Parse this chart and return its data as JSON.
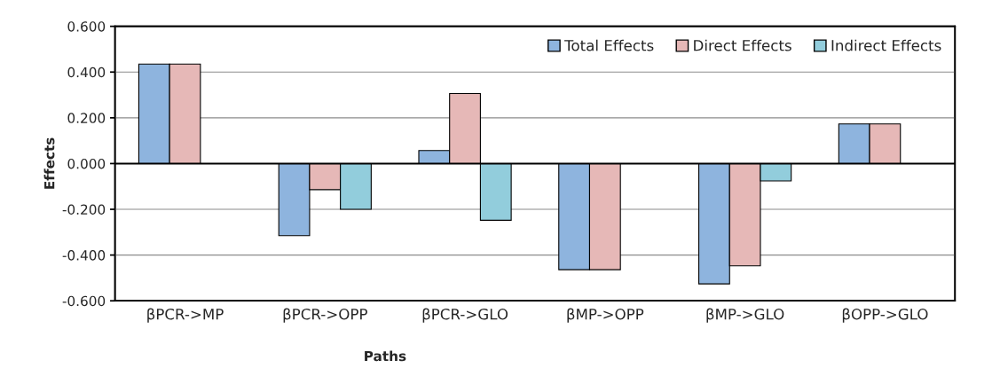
{
  "chart_data": {
    "type": "bar",
    "xlabel": "Paths",
    "ylabel": "Effects",
    "categories": [
      "βPCR->MP",
      "βPCR->OPP",
      "βPCR->GLO",
      "βMP->OPP",
      "βMP->GLO",
      "βOPP->GLO"
    ],
    "series": [
      {
        "name": "Total Effects",
        "color": "#8eb4de",
        "values": [
          0.435,
          -0.315,
          0.057,
          -0.464,
          -0.526,
          0.173
        ]
      },
      {
        "name": "Direct Effects",
        "color": "#e6b8b7",
        "values": [
          0.435,
          -0.114,
          0.306,
          -0.464,
          -0.447,
          0.173
        ]
      },
      {
        "name": "Indirect Effects",
        "color": "#92cddc",
        "values": [
          null,
          -0.2,
          -0.248,
          null,
          -0.076,
          null
        ]
      }
    ],
    "ylim": [
      -0.6,
      0.6
    ],
    "yticks": [
      {
        "value": -0.6,
        "label": "-0.600"
      },
      {
        "value": -0.4,
        "label": "-0.400"
      },
      {
        "value": -0.2,
        "label": "-0.200"
      },
      {
        "value": 0,
        "label": "0.000"
      },
      {
        "value": 0.2,
        "label": "0.200"
      },
      {
        "value": 0.4,
        "label": "0.400"
      },
      {
        "value": 0.6,
        "label": "0.600"
      }
    ],
    "grid": "y",
    "legend": "top right"
  }
}
